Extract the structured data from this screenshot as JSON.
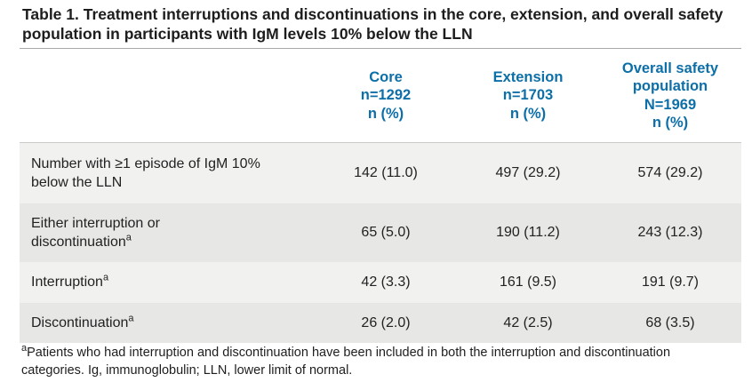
{
  "title": "Table 1. Treatment interruptions and discontinuations in the core, extension, and overall safety population in participants with IgM levels 10% below the LLN",
  "colors": {
    "header_text_blue": "#0d6fa8",
    "row_stripe_light": "#f1f1f0",
    "row_stripe_dark": "#e7e7e6",
    "title_text": "#1d1d1d",
    "body_text": "#222222"
  },
  "table": {
    "columns": [
      {
        "lines": [
          "Core",
          "n=1292",
          "n (%)"
        ]
      },
      {
        "lines": [
          "Extension",
          "n=1703",
          "n (%)"
        ]
      },
      {
        "lines": [
          "Overall safety",
          "population",
          "N=1969",
          "n (%)"
        ]
      }
    ],
    "rows": [
      {
        "label": "Number with ≥1 episode of IgM 10% below the LLN",
        "label_lines": [
          "Number with ≥1 episode of IgM 10%",
          "below the LLN"
        ],
        "sup": "",
        "values": [
          "142 (11.0)",
          "497 (29.2)",
          "574 (29.2)"
        ]
      },
      {
        "label": "Either interruption or discontinuation",
        "label_lines": [
          "Either interruption or",
          "discontinuation"
        ],
        "sup": "a",
        "values": [
          "65 (5.0)",
          "190 (11.2)",
          "243 (12.3)"
        ]
      },
      {
        "label": "Interruption",
        "label_lines": [
          "Interruption"
        ],
        "sup": "a",
        "values": [
          "42 (3.3)",
          "161 (9.5)",
          "191 (9.7)"
        ]
      },
      {
        "label": "Discontinuation",
        "label_lines": [
          "Discontinuation"
        ],
        "sup": "a",
        "values": [
          "26 (2.0)",
          "42 (2.5)",
          "68 (3.5)"
        ]
      }
    ]
  },
  "footnote": {
    "sup": "a",
    "text": "Patients who had interruption and discontinuation have been included in both the interruption and discontinuation categories. Ig, immunoglobulin; LLN, lower limit of normal."
  }
}
